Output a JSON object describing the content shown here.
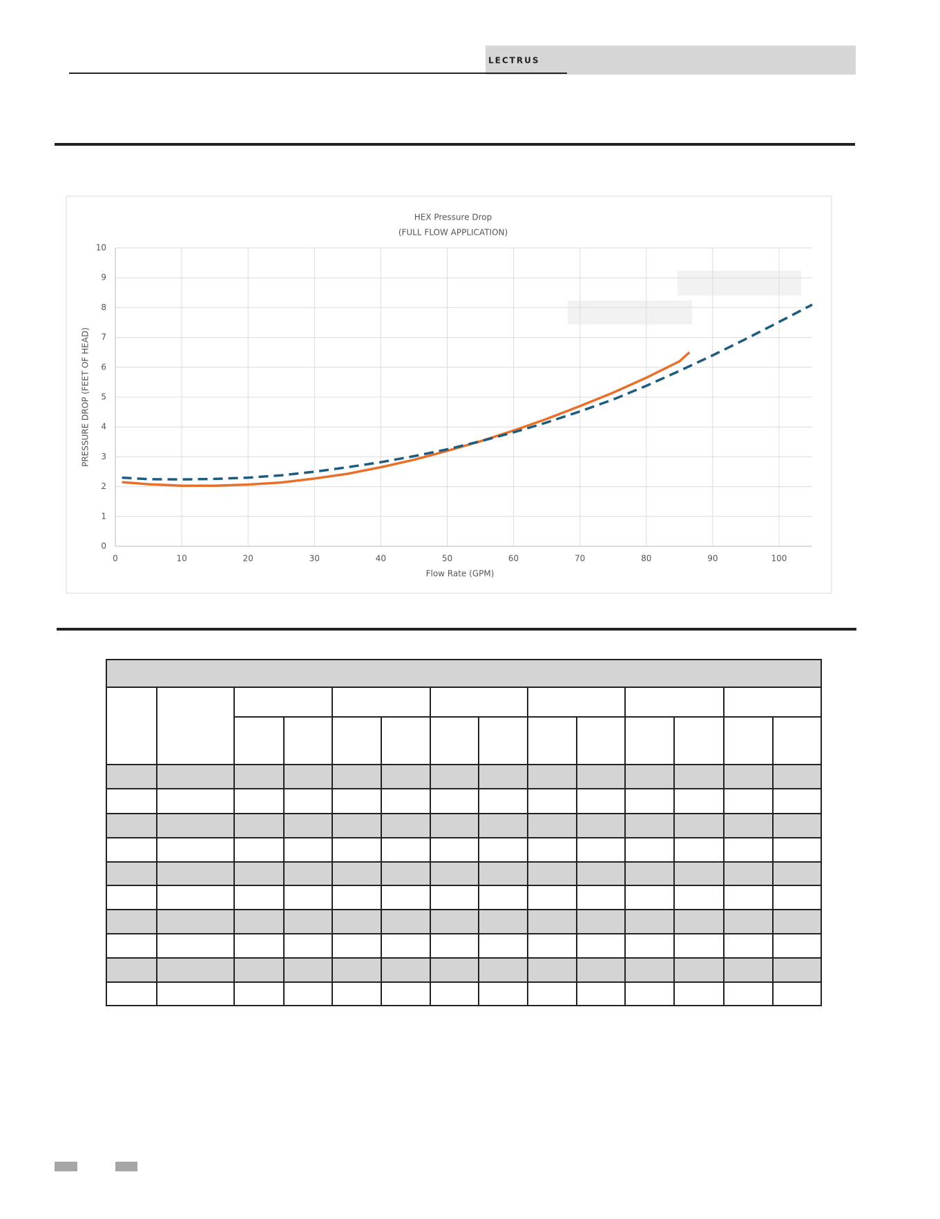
{
  "header": {
    "logo": "LECTRUS"
  },
  "chart_data": {
    "type": "line",
    "title": "HEX Pressure Drop",
    "subtitle": "(FULL FLOW APPLICATION)",
    "x_label": "Flow Rate (GPM)",
    "y_label": "PRESSURE DROP (FEET OF HEAD)",
    "xlim": [
      0,
      105
    ],
    "ylim": [
      0,
      10
    ],
    "xticks": [
      0,
      10,
      20,
      30,
      40,
      50,
      60,
      70,
      80,
      90,
      100
    ],
    "yticks": [
      0,
      1,
      2,
      3,
      4,
      5,
      6,
      7,
      8,
      9,
      10
    ],
    "grid": true,
    "series": [
      {
        "color": "#e8702a",
        "dash": false,
        "x": [
          1,
          5,
          10,
          15,
          20,
          25,
          30,
          35,
          40,
          45,
          50,
          55,
          60,
          65,
          70,
          75,
          80,
          85,
          86.5
        ],
        "values": [
          2.15,
          2.08,
          2.03,
          2.03,
          2.07,
          2.14,
          2.27,
          2.43,
          2.65,
          2.9,
          3.2,
          3.52,
          3.88,
          4.27,
          4.7,
          5.15,
          5.65,
          6.2,
          6.5
        ]
      },
      {
        "color": "#1d5b7f",
        "dash": true,
        "x": [
          1,
          5,
          10,
          15,
          20,
          25,
          30,
          35,
          40,
          45,
          50,
          55,
          60,
          65,
          70,
          75,
          80,
          85,
          90,
          95,
          100,
          105
        ],
        "values": [
          2.3,
          2.25,
          2.24,
          2.26,
          2.3,
          2.38,
          2.5,
          2.65,
          2.82,
          3.02,
          3.25,
          3.52,
          3.82,
          4.15,
          4.52,
          4.92,
          5.38,
          5.88,
          6.4,
          6.95,
          7.52,
          8.1
        ]
      }
    ]
  }
}
